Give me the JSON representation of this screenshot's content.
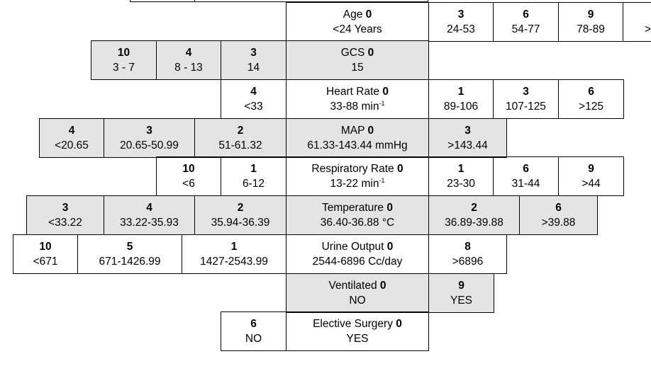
{
  "rows": [
    {
      "name": "age",
      "center": {
        "label": "Age",
        "score": "0",
        "range": "<24 Years",
        "grey": false
      },
      "left": [],
      "right": [
        {
          "points": "3",
          "range": "24-53",
          "grey": false
        },
        {
          "points": "6",
          "range": "54-77",
          "grey": false
        },
        {
          "points": "9",
          "range": "78-89",
          "grey": false
        },
        {
          "points": "",
          "range": ">",
          "grey": false
        }
      ]
    },
    {
      "name": "gcs",
      "center": {
        "label": "GCS",
        "score": "0",
        "range": "15",
        "grey": true
      },
      "left": [
        {
          "points": "10",
          "range": "3 - 7",
          "grey": true
        },
        {
          "points": "4",
          "range": "8 - 13",
          "grey": true
        },
        {
          "points": "3",
          "range": "14",
          "grey": true
        }
      ],
      "right": []
    },
    {
      "name": "heart-rate",
      "center": {
        "label": "Heart Rate",
        "score": "0",
        "range": "33-88 min",
        "unit_sup": "-1",
        "grey": false
      },
      "left": [
        {
          "points": "4",
          "range": "<33",
          "grey": false
        }
      ],
      "right": [
        {
          "points": "1",
          "range": "89-106",
          "grey": false
        },
        {
          "points": "3",
          "range": "107-125",
          "grey": false
        },
        {
          "points": "6",
          "range": ">125",
          "grey": false
        }
      ]
    },
    {
      "name": "map",
      "center": {
        "label": "MAP",
        "score": "0",
        "range": "61.33-143.44 mmHg",
        "grey": true
      },
      "left": [
        {
          "points": "4",
          "range": "<20.65",
          "grey": true
        },
        {
          "points": "3",
          "range": "20.65-50.99",
          "grey": true
        },
        {
          "points": "2",
          "range": "51-61.32",
          "grey": true
        }
      ],
      "right": [
        {
          "points": "3",
          "range": ">143.44",
          "grey": true
        }
      ]
    },
    {
      "name": "respiratory-rate",
      "center": {
        "label": "Respiratory Rate",
        "score": "0",
        "range": "13-22 min",
        "unit_sup": "-1",
        "grey": false
      },
      "left": [
        {
          "points": "10",
          "range": "<6",
          "grey": false
        },
        {
          "points": "1",
          "range": "6-12",
          "grey": false
        }
      ],
      "right": [
        {
          "points": "1",
          "range": "23-30",
          "grey": false
        },
        {
          "points": "6",
          "range": "31-44",
          "grey": false
        },
        {
          "points": "9",
          "range": ">44",
          "grey": false
        }
      ]
    },
    {
      "name": "temperature",
      "center": {
        "label": "Temperature",
        "score": "0",
        "range": "36.40-36.88 °C",
        "grey": true
      },
      "left": [
        {
          "points": "3",
          "range": "<33.22",
          "grey": true
        },
        {
          "points": "4",
          "range": "33.22-35.93",
          "grey": true
        },
        {
          "points": "2",
          "range": "35.94-36.39",
          "grey": true
        }
      ],
      "right": [
        {
          "points": "2",
          "range": "36.89-39.88",
          "grey": true
        },
        {
          "points": "6",
          "range": ">39.88",
          "grey": true
        }
      ]
    },
    {
      "name": "urine-output",
      "center": {
        "label": "Urine Output",
        "score": "0",
        "range": "2544-6896 Cc/day",
        "grey": false
      },
      "left": [
        {
          "points": "10",
          "range": "<671",
          "grey": false
        },
        {
          "points": "5",
          "range": "671-1426.99",
          "grey": false
        },
        {
          "points": "1",
          "range": "1427-2543.99",
          "grey": false
        }
      ],
      "right": [
        {
          "points": "8",
          "range": ">6896",
          "grey": false
        }
      ]
    },
    {
      "name": "ventilated",
      "center": {
        "label": "Ventilated",
        "score": "0",
        "range": "NO",
        "grey": true
      },
      "left": [],
      "right": [
        {
          "points": "9",
          "range": "YES",
          "grey": true
        }
      ]
    },
    {
      "name": "elective-surgery",
      "center": {
        "label": "Elective Surgery",
        "score": "0",
        "range": "YES",
        "grey": false
      },
      "left": [
        {
          "points": "6",
          "range": "NO",
          "grey": false
        }
      ],
      "right": []
    }
  ]
}
